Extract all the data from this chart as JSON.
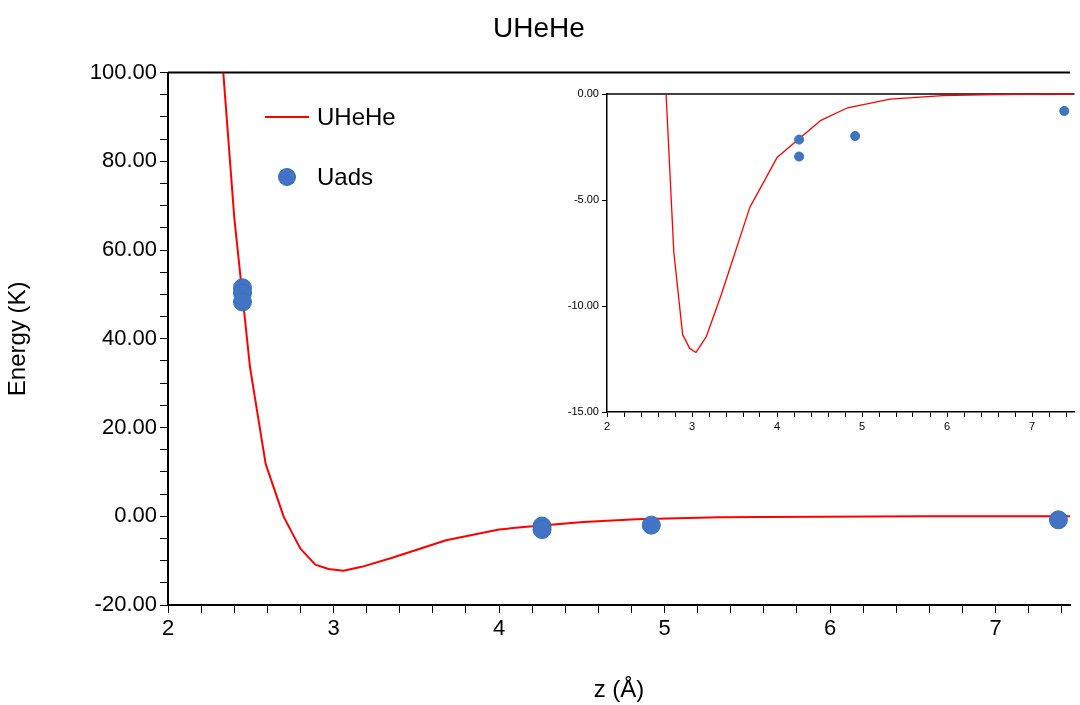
{
  "chart_data": [
    {
      "type": "line",
      "title": "UHeHe",
      "xlabel": "z (Å)",
      "ylabel": "Energy (K)",
      "legend": "top left",
      "xlim": [
        2,
        7.45
      ],
      "ylim": [
        -20,
        100
      ],
      "xticks": [
        2,
        {
          "value": 2.2,
          "label": null
        },
        {
          "value": 2.4,
          "label": null
        },
        {
          "value": 2.6,
          "label": null
        },
        {
          "value": 2.8,
          "label": null
        },
        3,
        {
          "value": 3.2,
          "label": null
        },
        {
          "value": 3.4,
          "label": null
        },
        {
          "value": 3.6,
          "label": null
        },
        {
          "value": 3.8,
          "label": null
        },
        4,
        {
          "value": 4.2,
          "label": null
        },
        {
          "value": 4.4,
          "label": null
        },
        {
          "value": 4.6,
          "label": null
        },
        {
          "value": 4.8,
          "label": null
        },
        5,
        {
          "value": 5.2,
          "label": null
        },
        {
          "value": 5.4,
          "label": null
        },
        {
          "value": 5.6,
          "label": null
        },
        {
          "value": 5.8,
          "label": null
        },
        6,
        {
          "value": 6.2,
          "label": null
        },
        {
          "value": 6.4,
          "label": null
        },
        {
          "value": 6.6,
          "label": null
        },
        {
          "value": 6.8,
          "label": null
        },
        7,
        {
          "value": 7.2,
          "label": null
        },
        {
          "value": 7.4,
          "label": null
        }
      ],
      "yticks": [
        {
          "value": -20,
          "label": "-20.00"
        },
        {
          "value": -15,
          "label": null
        },
        {
          "value": -10,
          "label": null
        },
        {
          "value": -5,
          "label": null
        },
        {
          "value": 0,
          "label": "0.00"
        },
        {
          "value": 5,
          "label": null
        },
        {
          "value": 10,
          "label": null
        },
        {
          "value": 15,
          "label": null
        },
        {
          "value": 20,
          "label": "20.00"
        },
        {
          "value": 25,
          "label": null
        },
        {
          "value": 30,
          "label": null
        },
        {
          "value": 35,
          "label": null
        },
        {
          "value": 40,
          "label": "40.00"
        },
        {
          "value": 45,
          "label": null
        },
        {
          "value": 50,
          "label": null
        },
        {
          "value": 55,
          "label": null
        },
        {
          "value": 60,
          "label": "60.00"
        },
        {
          "value": 65,
          "label": null
        },
        {
          "value": 70,
          "label": null
        },
        {
          "value": 75,
          "label": null
        },
        {
          "value": 80,
          "label": "80.00"
        },
        {
          "value": 85,
          "label": null
        },
        {
          "value": 90,
          "label": null
        },
        {
          "value": 95,
          "label": null
        },
        {
          "value": 100,
          "label": "100.00"
        }
      ],
      "series": [
        {
          "name": "UHeHe",
          "marker": "none",
          "color": "#ff0000",
          "x": [
            2.334,
            2.4,
            2.495,
            2.59,
            2.7,
            2.8,
            2.89,
            2.97,
            3.06,
            3.17,
            3.35,
            3.68,
            4.0,
            4.15,
            4.51,
            4.83,
            5.33,
            5.95,
            6.57,
            7.45
          ],
          "values": [
            100,
            67.5,
            33.7,
            11.8,
            -0.2,
            -7.3,
            -10.9,
            -11.9,
            -12.3,
            -11.4,
            -9.4,
            -5.4,
            -3.0,
            -2.4,
            -1.3,
            -0.7,
            -0.2,
            -0.1,
            0,
            0
          ]
        },
        {
          "name": "Uads",
          "type": "scatter",
          "marker": "circle",
          "color": "#4472c4",
          "x": [
            2.45,
            2.45,
            2.45,
            4.26,
            4.26,
            4.92,
            7.38
          ],
          "values": [
            51.5,
            50.3,
            48.3,
            -2.2,
            -3.0,
            -2.0,
            -0.8
          ]
        }
      ]
    },
    {
      "type": "line",
      "xlim": [
        2,
        7.5
      ],
      "ylim": [
        -15,
        0
      ],
      "xticks": [
        2,
        {
          "value": 2.2,
          "label": null
        },
        {
          "value": 2.4,
          "label": null
        },
        {
          "value": 2.6,
          "label": null
        },
        {
          "value": 2.8,
          "label": null
        },
        3,
        {
          "value": 3.2,
          "label": null
        },
        {
          "value": 3.4,
          "label": null
        },
        {
          "value": 3.6,
          "label": null
        },
        {
          "value": 3.8,
          "label": null
        },
        4,
        {
          "value": 4.2,
          "label": null
        },
        {
          "value": 4.4,
          "label": null
        },
        {
          "value": 4.6,
          "label": null
        },
        {
          "value": 4.8,
          "label": null
        },
        5,
        {
          "value": 5.2,
          "label": null
        },
        {
          "value": 5.4,
          "label": null
        },
        {
          "value": 5.6,
          "label": null
        },
        {
          "value": 5.8,
          "label": null
        },
        6,
        {
          "value": 6.2,
          "label": null
        },
        {
          "value": 6.4,
          "label": null
        },
        {
          "value": 6.6,
          "label": null
        },
        {
          "value": 6.8,
          "label": null
        },
        7,
        {
          "value": 7.2,
          "label": null
        },
        {
          "value": 7.4,
          "label": null
        }
      ],
      "yticks": [
        {
          "value": -15,
          "label": "-15.00"
        },
        {
          "value": -10,
          "label": "-10.00"
        },
        {
          "value": -5,
          "label": "-5.00"
        },
        {
          "value": 0,
          "label": "0.00"
        }
      ],
      "series": [
        {
          "marker": "none",
          "color": "#ff0000",
          "x": [
            2.695,
            2.786,
            2.89,
            2.973,
            3.047,
            3.17,
            3.35,
            3.68,
            4.0,
            4.26,
            4.51,
            4.83,
            5.33,
            5.95,
            6.57,
            7.48
          ],
          "values": [
            0,
            -7.46,
            -11.35,
            -12.0,
            -12.19,
            -11.43,
            -9.4,
            -5.35,
            -3.0,
            -2.11,
            -1.26,
            -0.65,
            -0.24,
            -0.08,
            -0.03,
            0
          ]
        },
        {
          "type": "scatter",
          "marker": "circle",
          "color": "#4472c4",
          "x": [
            4.26,
            4.26,
            4.92,
            7.38
          ],
          "values": [
            -2.15,
            -2.95,
            -1.98,
            -0.8
          ]
        }
      ]
    }
  ]
}
